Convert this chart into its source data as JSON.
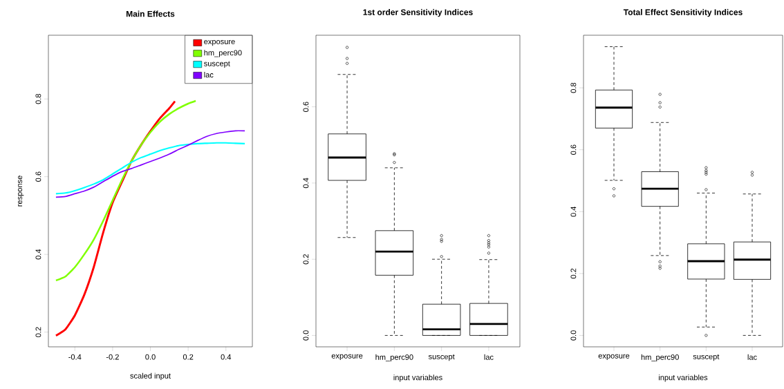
{
  "chart_data": [
    {
      "type": "line",
      "title": "Main Effects",
      "xlabel": "scaled input",
      "ylabel": "response",
      "xlim": [
        -0.54,
        0.54
      ],
      "ylim": [
        0.162,
        0.964
      ],
      "xticks": [
        -0.4,
        -0.2,
        {
          "value": 0,
          "label": "0.0"
        },
        0.2,
        0.4
      ],
      "yticks": [
        0.2,
        0.4,
        0.6,
        0.8
      ],
      "legend": "top right",
      "series": [
        {
          "name": "exposure",
          "color": "#ff0000",
          "x": [
            -0.5,
            -0.45,
            -0.4,
            -0.35,
            -0.3,
            -0.25,
            -0.2,
            -0.15,
            -0.1,
            -0.05,
            0,
            0.05,
            0.1,
            0.13
          ],
          "values": [
            0.191,
            0.207,
            0.243,
            0.296,
            0.367,
            0.456,
            0.533,
            0.587,
            0.64,
            0.681,
            0.717,
            0.75,
            0.776,
            0.794
          ]
        },
        {
          "name": "hm_perc90",
          "color": "#80ff00",
          "x": [
            -0.5,
            -0.45,
            -0.4,
            -0.35,
            -0.3,
            -0.25,
            -0.2,
            -0.15,
            -0.1,
            -0.05,
            0,
            0.05,
            0.1,
            0.15,
            0.2,
            0.24
          ],
          "values": [
            0.333,
            0.343,
            0.367,
            0.4,
            0.438,
            0.486,
            0.539,
            0.592,
            0.64,
            0.681,
            0.714,
            0.741,
            0.761,
            0.776,
            0.788,
            0.795
          ]
        },
        {
          "name": "suscept",
          "color": "#00ffff",
          "x": [
            -0.5,
            -0.45,
            -0.4,
            -0.35,
            -0.3,
            -0.25,
            -0.2,
            -0.15,
            -0.1,
            -0.05,
            0,
            0.05,
            0.1,
            0.15,
            0.2,
            0.25,
            0.3,
            0.35,
            0.4,
            0.45,
            0.5
          ],
          "values": [
            0.556,
            0.558,
            0.564,
            0.572,
            0.581,
            0.592,
            0.607,
            0.622,
            0.637,
            0.649,
            0.658,
            0.667,
            0.674,
            0.68,
            0.683,
            0.685,
            0.686,
            0.687,
            0.687,
            0.686,
            0.685
          ]
        },
        {
          "name": "lac",
          "color": "#8000ff",
          "x": [
            -0.5,
            -0.45,
            -0.4,
            -0.35,
            -0.3,
            -0.25,
            -0.2,
            -0.15,
            -0.1,
            -0.05,
            0,
            0.05,
            0.1,
            0.15,
            0.2,
            0.25,
            0.3,
            0.35,
            0.4,
            0.45,
            0.5
          ],
          "values": [
            0.547,
            0.549,
            0.556,
            0.563,
            0.573,
            0.587,
            0.601,
            0.613,
            0.621,
            0.63,
            0.639,
            0.648,
            0.658,
            0.67,
            0.681,
            0.693,
            0.704,
            0.711,
            0.715,
            0.718,
            0.718
          ]
        }
      ]
    },
    {
      "type": "box",
      "title": "1st order Sensitivity Indices",
      "xlabel": "input variables",
      "categories": [
        "exposure",
        "hm_perc90",
        "suscept",
        "lac"
      ],
      "ylim": [
        -0.03,
        0.788
      ],
      "yticks": [
        {
          "value": 0,
          "label": "0.0"
        },
        0.2,
        0.4,
        0.6
      ],
      "boxes": [
        {
          "low": 0.257,
          "q1": 0.407,
          "median": 0.467,
          "q3": 0.529,
          "high": 0.685,
          "outliers": [
            0.756,
            0.727,
            0.714
          ]
        },
        {
          "low": 0,
          "q1": 0.158,
          "median": 0.22,
          "q3": 0.275,
          "high": 0.44,
          "outliers": [
            0.477,
            0.474,
            0.454
          ]
        },
        {
          "low": 0,
          "q1": 0,
          "median": 0.016,
          "q3": 0.082,
          "high": 0.2,
          "outliers": [
            0.262,
            0.252,
            0.247,
            0.207
          ]
        },
        {
          "low": 0,
          "q1": 0,
          "median": 0.03,
          "q3": 0.084,
          "high": 0.199,
          "outliers": [
            0.262,
            0.249,
            0.243,
            0.238,
            0.232,
            0.216
          ]
        }
      ]
    },
    {
      "type": "box",
      "title": "Total Effect Sensitivity Indices",
      "xlabel": "input variables",
      "categories": [
        "exposure",
        "hm_perc90",
        "suscept",
        "lac"
      ],
      "ylim": [
        -0.037,
        0.97
      ],
      "yticks": [
        {
          "value": 0,
          "label": "0.0"
        },
        0.2,
        0.4,
        0.6,
        0.8
      ],
      "boxes": [
        {
          "low": 0.501,
          "q1": 0.67,
          "median": 0.736,
          "q3": 0.793,
          "high": 0.933,
          "outliers": [
            0.474,
            0.451
          ]
        },
        {
          "low": 0.258,
          "q1": 0.417,
          "median": 0.474,
          "q3": 0.529,
          "high": 0.688,
          "outliers": [
            0.779,
            0.752,
            0.738,
            0.238,
            0.224,
            0.217
          ]
        },
        {
          "low": 0.027,
          "q1": 0.182,
          "median": 0.24,
          "q3": 0.296,
          "high": 0.46,
          "outliers": [
            0.542,
            0.533,
            0.527,
            0.521,
            0.471,
            0
          ]
        },
        {
          "low": 0,
          "q1": 0.181,
          "median": 0.245,
          "q3": 0.302,
          "high": 0.457,
          "outliers": [
            0.527,
            0.518
          ]
        }
      ]
    }
  ]
}
